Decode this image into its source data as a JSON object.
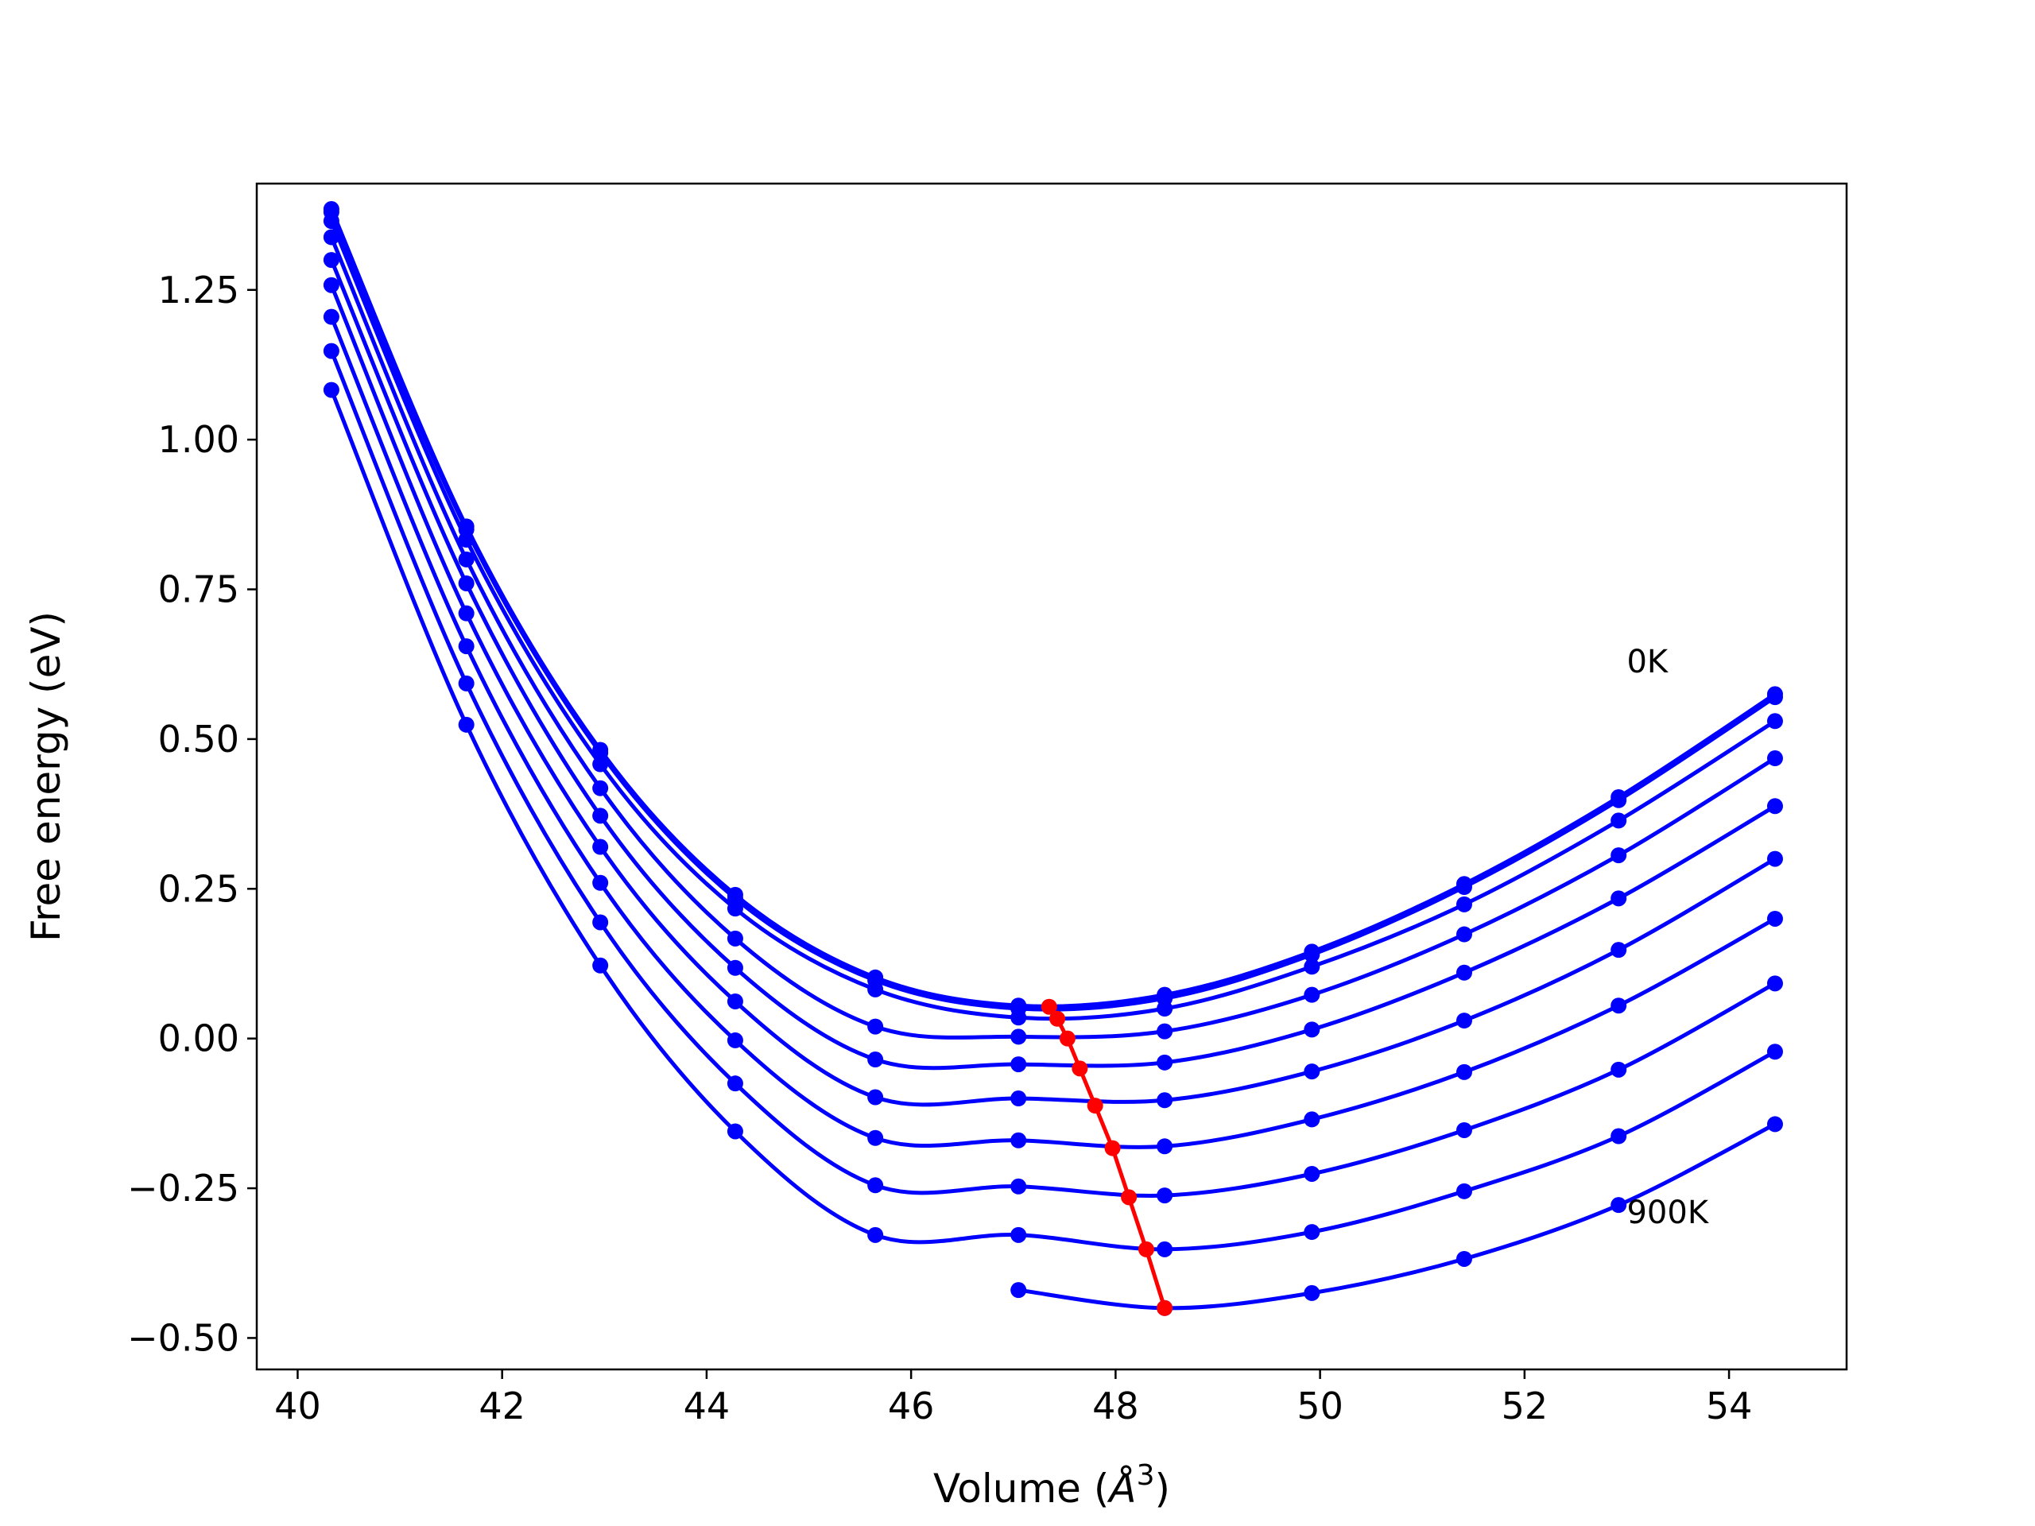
{
  "chart_data": {
    "type": "line",
    "title": "",
    "xlabel": "Volume (",
    "xlabel_symbol": "Å",
    "xlabel_exp": "3",
    "xlabel_close": ")",
    "ylabel": "Free energy (eV)",
    "xlim": [
      39.6,
      55.15
    ],
    "ylim": [
      -0.5525,
      1.4275
    ],
    "xticks": [
      40,
      42,
      44,
      46,
      48,
      50,
      52,
      54
    ],
    "yticks": [
      -0.5,
      -0.25,
      0.0,
      0.25,
      0.5,
      0.75,
      1.0,
      1.25
    ],
    "xtick_labels": [
      "40",
      "42",
      "44",
      "46",
      "48",
      "50",
      "52",
      "54"
    ],
    "ytick_labels": [
      "−0.50",
      "−0.25",
      "0.00",
      "0.25",
      "0.50",
      "0.75",
      "1.00",
      "1.25"
    ],
    "grid": false,
    "curve_color": "#0000ff",
    "equilibrium_color": "#ff0000",
    "volumes": [
      40.33,
      41.65,
      42.96,
      44.28,
      45.65,
      47.05,
      48.48,
      49.92,
      51.41,
      52.92,
      54.45
    ],
    "series": [
      {
        "values": [
          1.385,
          0.855,
          0.482,
          0.24,
          0.102,
          0.055,
          0.073,
          0.145,
          0.258,
          0.403,
          0.575
        ]
      },
      {
        "values": [
          1.38,
          0.85,
          0.477,
          0.234,
          0.097,
          0.05,
          0.067,
          0.14,
          0.253,
          0.398,
          0.57
        ]
      },
      {
        "values": [
          1.365,
          0.833,
          0.458,
          0.217,
          0.082,
          0.035,
          0.05,
          0.12,
          0.224,
          0.364,
          0.53
        ]
      },
      {
        "values": [
          1.338,
          0.8,
          0.418,
          0.167,
          0.02,
          0.003,
          0.012,
          0.073,
          0.174,
          0.306,
          0.468
        ]
      },
      {
        "values": [
          1.3,
          0.76,
          0.372,
          0.118,
          -0.035,
          -0.043,
          -0.04,
          0.015,
          0.11,
          0.234,
          0.388
        ]
      },
      {
        "values": [
          1.258,
          0.71,
          0.32,
          0.062,
          -0.098,
          -0.1,
          -0.103,
          -0.055,
          0.03,
          0.148,
          0.3
        ]
      },
      {
        "values": [
          1.205,
          0.655,
          0.26,
          -0.003,
          -0.166,
          -0.17,
          -0.18,
          -0.135,
          -0.056,
          0.055,
          0.2
        ]
      },
      {
        "values": [
          1.148,
          0.593,
          0.194,
          -0.075,
          -0.245,
          -0.247,
          -0.262,
          -0.226,
          -0.153,
          -0.052,
          0.092
        ]
      },
      {
        "values": [
          1.083,
          0.524,
          0.122,
          -0.155,
          -0.328,
          -0.328,
          -0.352,
          -0.323,
          -0.255,
          -0.163,
          -0.022
        ]
      },
      {
        "values": [
          null,
          null,
          null,
          null,
          null,
          -0.42,
          -0.45,
          -0.425,
          -0.368,
          -0.278,
          -0.143
        ]
      }
    ],
    "equilibrium": {
      "x": [
        47.35,
        47.43,
        47.53,
        47.65,
        47.8,
        47.97,
        48.13,
        48.3,
        48.48
      ],
      "y": [
        0.053,
        0.033,
        0.0,
        -0.05,
        -0.112,
        -0.183,
        -0.265,
        -0.352,
        -0.45
      ]
    },
    "annotations": [
      {
        "text": "0K",
        "x": 53.0,
        "y": 0.63
      },
      {
        "text": "900K",
        "x": 53.0,
        "y": -0.29
      }
    ]
  }
}
